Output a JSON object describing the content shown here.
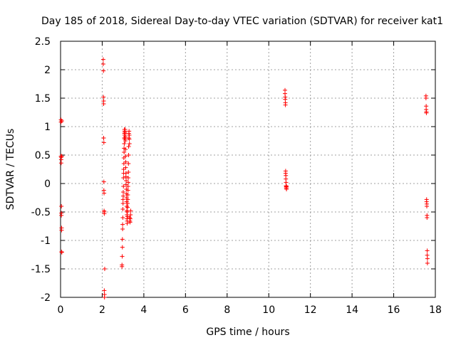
{
  "chart_data": {
    "type": "scatter",
    "title": "Day 185 of 2018, Sidereal Day-to-day VTEC variation (SDTVAR) for receiver kat1",
    "xlabel": "GPS time / hours",
    "ylabel": "SDTVAR / TECUs",
    "xlim": [
      0,
      18
    ],
    "ylim": [
      -2,
      2.5
    ],
    "xticks": [
      0,
      2,
      4,
      6,
      8,
      10,
      12,
      14,
      16,
      18
    ],
    "yticks": [
      -2,
      -1.5,
      -1,
      -0.5,
      0,
      0.5,
      1,
      1.5,
      2,
      2.5
    ],
    "xtick_labels": [
      "0",
      "2",
      "4",
      "6",
      "8",
      "10",
      "12",
      "14",
      "16",
      "18"
    ],
    "ytick_labels": [
      "-2",
      "-1.5",
      "-1",
      "-0.5",
      "0",
      "0.5",
      "1",
      "1.5",
      "2",
      "2.5"
    ],
    "grid": true,
    "marker": "plus",
    "color": "#ff0000",
    "series": [
      {
        "name": "SDTVAR",
        "x": [
          0.02,
          0.02,
          0.02,
          0.03,
          0.03,
          0.03,
          0.04,
          0.04,
          0.04,
          0.05,
          0.05,
          0.05,
          0.06,
          0.06,
          0.06,
          2.05,
          2.05,
          2.06,
          2.06,
          2.07,
          2.07,
          2.07,
          2.08,
          2.08,
          2.08,
          2.09,
          2.09,
          2.1,
          2.1,
          2.1,
          2.11,
          2.11,
          2.12,
          2.95,
          2.95,
          2.96,
          2.97,
          2.97,
          2.98,
          2.98,
          2.99,
          2.99,
          3.0,
          3.0,
          3.01,
          3.01,
          3.02,
          3.02,
          3.03,
          3.03,
          3.04,
          3.04,
          3.05,
          3.05,
          3.06,
          3.06,
          3.07,
          3.07,
          3.08,
          3.08,
          3.09,
          3.09,
          3.1,
          3.1,
          3.11,
          3.11,
          3.12,
          3.12,
          3.13,
          3.13,
          3.14,
          3.14,
          3.15,
          3.15,
          3.16,
          3.16,
          3.17,
          3.17,
          3.18,
          3.18,
          3.19,
          3.19,
          3.2,
          3.2,
          3.21,
          3.21,
          3.22,
          3.22,
          3.23,
          3.23,
          3.24,
          3.24,
          3.25,
          3.25,
          3.26,
          3.26,
          3.27,
          3.27,
          3.28,
          3.28,
          3.29,
          3.3,
          3.3,
          3.31,
          3.32,
          3.33,
          3.34,
          3.35,
          3.36,
          3.37,
          10.78,
          10.78,
          10.79,
          10.79,
          10.8,
          10.8,
          10.81,
          10.81,
          10.82,
          10.82,
          10.83,
          10.83,
          10.84,
          10.84,
          10.85,
          10.85,
          17.55,
          17.55,
          17.56,
          17.56,
          17.57,
          17.57,
          17.58,
          17.58,
          17.59,
          17.59,
          17.6,
          17.6,
          17.61,
          17.61,
          17.62,
          17.62
        ],
        "y": [
          1.12,
          1.08,
          0.48,
          0.46,
          0.42,
          0.36,
          -0.4,
          -0.52,
          -0.56,
          -0.78,
          -0.82,
          -1.2,
          -1.21,
          0.48,
          1.1,
          2.18,
          2.1,
          1.98,
          1.52,
          1.45,
          1.4,
          0.8,
          0.72,
          0.03,
          -0.12,
          -0.17,
          -0.48,
          -0.5,
          -0.53,
          -1.88,
          -1.95,
          -2.0,
          -1.5,
          -1.46,
          -1.43,
          -1.28,
          -1.12,
          -0.98,
          -0.8,
          -0.72,
          -0.6,
          -0.45,
          -0.35,
          -0.28,
          -0.22,
          -0.15,
          -0.05,
          0.1,
          0.18,
          0.25,
          0.35,
          0.45,
          0.55,
          0.62,
          0.7,
          0.8,
          0.88,
          0.95,
          0.92,
          0.85,
          0.78,
          0.9,
          0.95,
          0.88,
          0.82,
          0.75,
          0.6,
          0.48,
          0.38,
          0.28,
          0.18,
          0.12,
          0.05,
          -0.02,
          -0.1,
          -0.18,
          -0.25,
          -0.32,
          -0.4,
          -0.48,
          -0.55,
          -0.62,
          -0.7,
          -0.66,
          -0.58,
          -0.5,
          -0.42,
          -0.35,
          -0.28,
          -0.2,
          -0.12,
          -0.05,
          0.02,
          0.1,
          0.2,
          0.35,
          0.5,
          0.65,
          0.8,
          0.88,
          0.92,
          0.85,
          0.78,
          0.7,
          -0.6,
          -0.66,
          -0.68,
          -0.62,
          -0.55,
          -0.48,
          1.64,
          1.58,
          1.52,
          1.48,
          1.42,
          1.38,
          0.22,
          0.18,
          0.14,
          0.08,
          0.02,
          -0.04,
          -0.06,
          -0.08,
          -0.1,
          -0.05,
          1.54,
          1.5,
          1.36,
          1.3,
          1.26,
          1.24,
          -0.28,
          -0.32,
          -0.36,
          -0.4,
          -0.56,
          -0.6,
          -1.18,
          -1.26,
          -1.32,
          -1.4
        ]
      }
    ]
  }
}
